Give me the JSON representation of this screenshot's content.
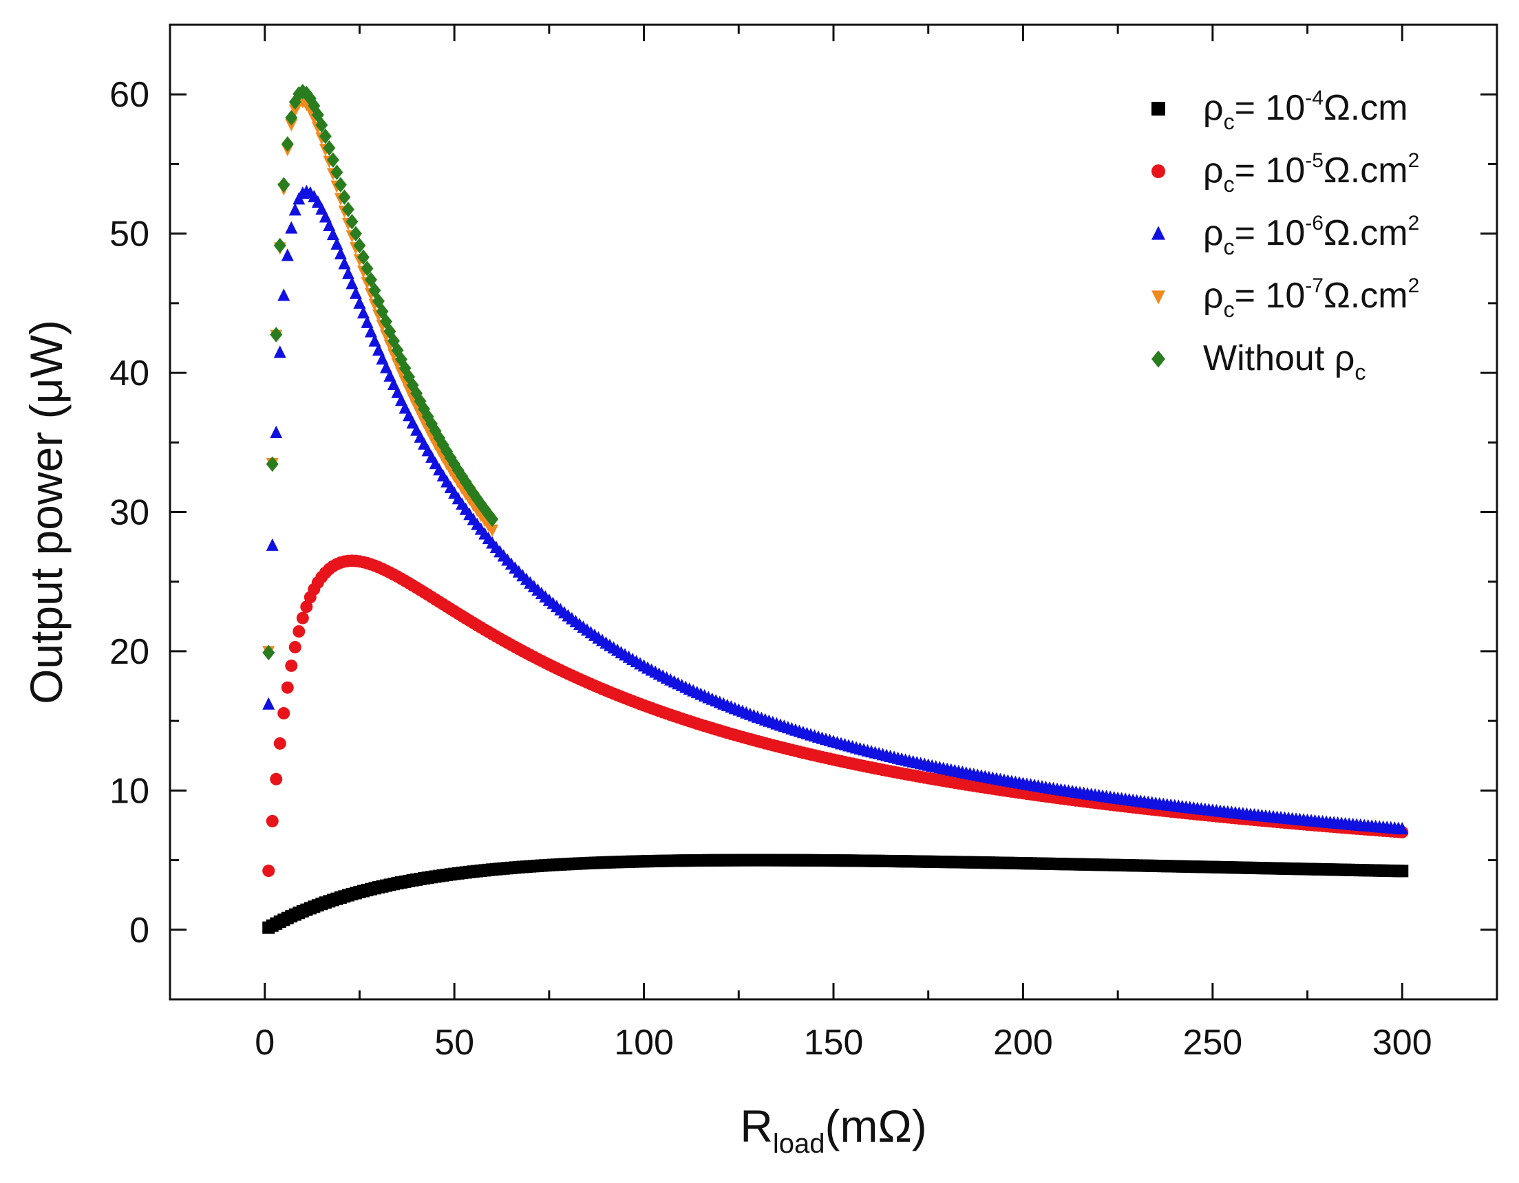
{
  "chart_data": {
    "type": "scatter",
    "title": "",
    "xlabel": {
      "main": "R",
      "sub": "load",
      "rest": "(mΩ)"
    },
    "ylabel": "Output power (μW)",
    "xlim": [
      -25,
      325
    ],
    "ylim": [
      -5,
      65
    ],
    "xticks": [
      0,
      50,
      100,
      150,
      200,
      250,
      300
    ],
    "xtick_labels": [
      "0",
      "50",
      "100",
      "150",
      "200",
      "250",
      "300"
    ],
    "yticks": [
      0,
      10,
      20,
      30,
      40,
      50,
      60
    ],
    "ytick_labels": [
      "0",
      "10",
      "20",
      "30",
      "40",
      "50",
      "60"
    ],
    "grid": false,
    "legend_position": "top-right",
    "series": [
      {
        "name": "ρc= 10-4Ω.cm",
        "legend": {
          "pre": "ρ",
          "sub": "c",
          "mid": "= 10",
          "sup": "-4",
          "post": "Ω.cm",
          "sup2": ""
        },
        "marker": "square",
        "color": "#000000",
        "Pmax": 5.0,
        "Ropt": 130,
        "xmin": 1,
        "xmax": 300,
        "step": 1
      },
      {
        "name": "ρc= 10-5Ω.cm2",
        "legend": {
          "pre": "ρ",
          "sub": "c",
          "mid": "= 10",
          "sup": "-5",
          "post": "Ω.cm",
          "sup2": "2"
        },
        "marker": "circle",
        "color": "#e8141b",
        "Pmax": 26.5,
        "Ropt": 23,
        "xmin": 1,
        "xmax": 300,
        "step": 1
      },
      {
        "name": "ρc= 10-6Ω.cm2",
        "legend": {
          "pre": "ρ",
          "sub": "c",
          "mid": "= 10",
          "sup": "-6",
          "post": "Ω.cm",
          "sup2": "2"
        },
        "marker": "triangle-up",
        "color": "#1010e0",
        "Pmax": 53,
        "Ropt": 11,
        "xmin": 1,
        "xmax": 300,
        "step": 1
      },
      {
        "name": "ρc= 10-7Ω.cm2",
        "legend": {
          "pre": "ρ",
          "sub": "c",
          "mid": "= 10",
          "sup": "-7",
          "post": "Ω.cm",
          "sup2": "2"
        },
        "marker": "triangle-down",
        "color": "#f08a1e",
        "Pmax": 59.5,
        "Ropt": 9.8,
        "xmin": 1,
        "xmax": 60,
        "step": 1
      },
      {
        "name": "Without ρc",
        "legend": {
          "pre": "Without  ρ",
          "sub": "c",
          "mid": "",
          "sup": "",
          "post": "",
          "sup2": ""
        },
        "marker": "diamond",
        "color": "#2a7d1e",
        "Pmax": 60.2,
        "Ropt": 10,
        "xmin": 1,
        "xmax": 60,
        "step": 1
      }
    ]
  }
}
